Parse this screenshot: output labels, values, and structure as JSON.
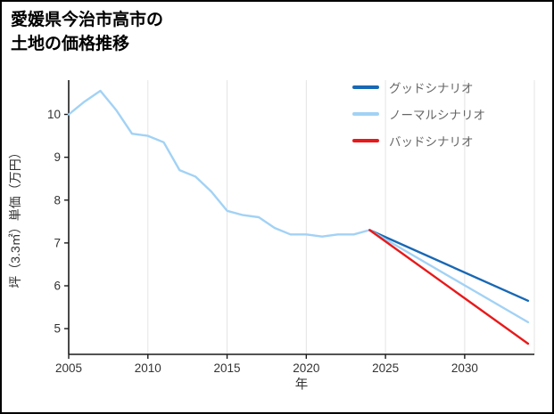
{
  "chart_data": {
    "type": "line",
    "title": "愛媛県今治市高市の\n土地の価格推移",
    "xlabel": "年",
    "ylabel": "坪（3.3㎡）単価（万円）",
    "xlim": [
      2005,
      2034.4
    ],
    "ylim": [
      4.4,
      10.8
    ],
    "xticks": [
      2005,
      2010,
      2015,
      2020,
      2025,
      2030
    ],
    "yticks": [
      5,
      6,
      7,
      8,
      9,
      10
    ],
    "grid": "vertical-only",
    "legend_position": "top-right",
    "axis_color": "#1a1a1a",
    "grid_color": "#e4e4e4",
    "series": [
      {
        "name": "historical",
        "color": "#a2d2f5",
        "in_legend": false,
        "x": [
          2005,
          2006,
          2007,
          2008,
          2009,
          2010,
          2011,
          2012,
          2013,
          2014,
          2015,
          2016,
          2017,
          2018,
          2019,
          2020,
          2021,
          2022,
          2023,
          2024
        ],
        "y": [
          10.0,
          10.3,
          10.55,
          10.1,
          9.55,
          9.5,
          9.35,
          8.7,
          8.55,
          8.2,
          7.75,
          7.65,
          7.6,
          7.35,
          7.2,
          7.2,
          7.15,
          7.2,
          7.2,
          7.3
        ]
      },
      {
        "name": "グッドシナリオ",
        "color": "#1868b4",
        "in_legend": true,
        "x": [
          2024,
          2034
        ],
        "y": [
          7.3,
          5.65
        ]
      },
      {
        "name": "ノーマルシナリオ",
        "color": "#a2d2f5",
        "in_legend": true,
        "x": [
          2024,
          2034
        ],
        "y": [
          7.3,
          5.15
        ]
      },
      {
        "name": "バッドシナリオ",
        "color": "#e8191a",
        "in_legend": true,
        "x": [
          2024,
          2034
        ],
        "y": [
          7.3,
          4.65
        ]
      }
    ]
  }
}
